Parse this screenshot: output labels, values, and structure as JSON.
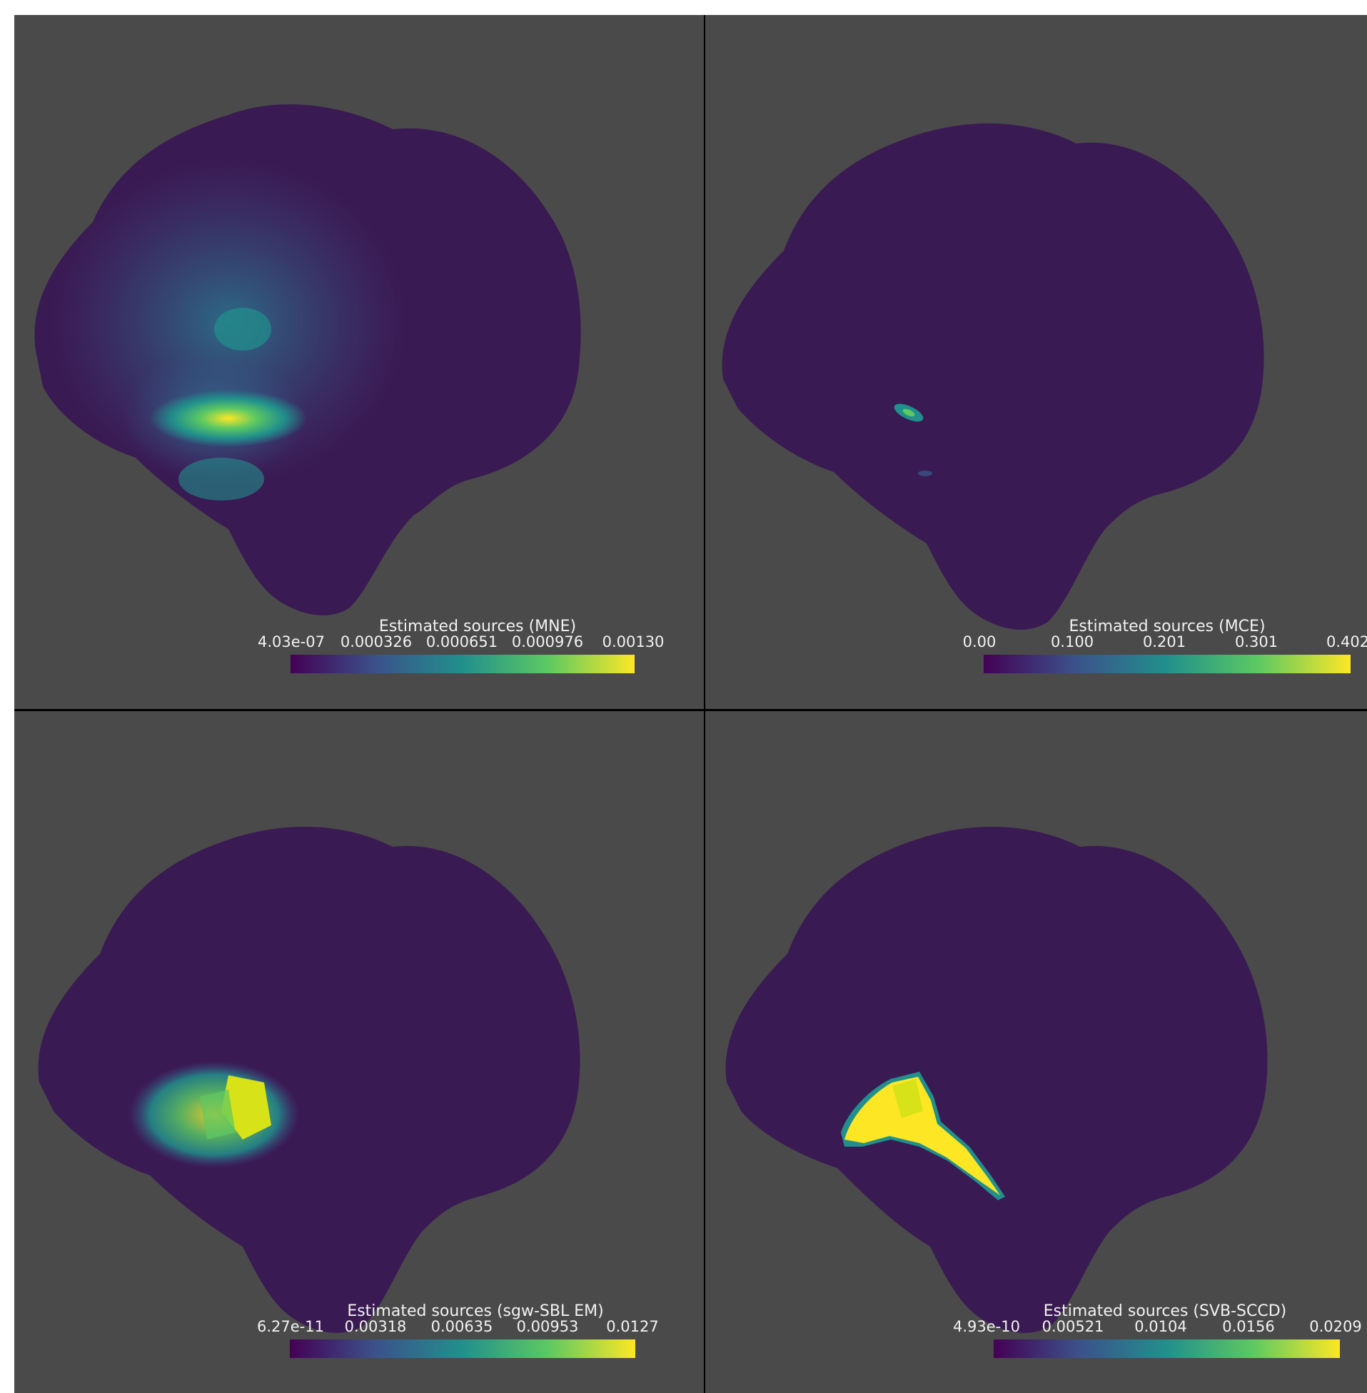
{
  "colormap": [
    "#440154",
    "#3b528b",
    "#21908c",
    "#5dc962",
    "#fde725"
  ],
  "panels": [
    {
      "title": "Estimated sources (MNE)",
      "ticks": [
        "4.03e-07",
        "0.000326",
        "0.000651",
        "0.000976",
        "0.00130"
      ]
    },
    {
      "title": "Estimated sources (MCE)",
      "ticks": [
        "0.00",
        "0.100",
        "0.201",
        "0.301",
        "0.402"
      ]
    },
    {
      "title": "Estimated sources (sgw-SBL EM)",
      "ticks": [
        "6.27e-11",
        "0.00318",
        "0.00635",
        "0.00953",
        "0.0127"
      ]
    },
    {
      "title": "Estimated sources (SVB-SCCD)",
      "ticks": [
        "4.93e-10",
        "0.00521",
        "0.0104",
        "0.0156",
        "0.0209"
      ]
    }
  ]
}
